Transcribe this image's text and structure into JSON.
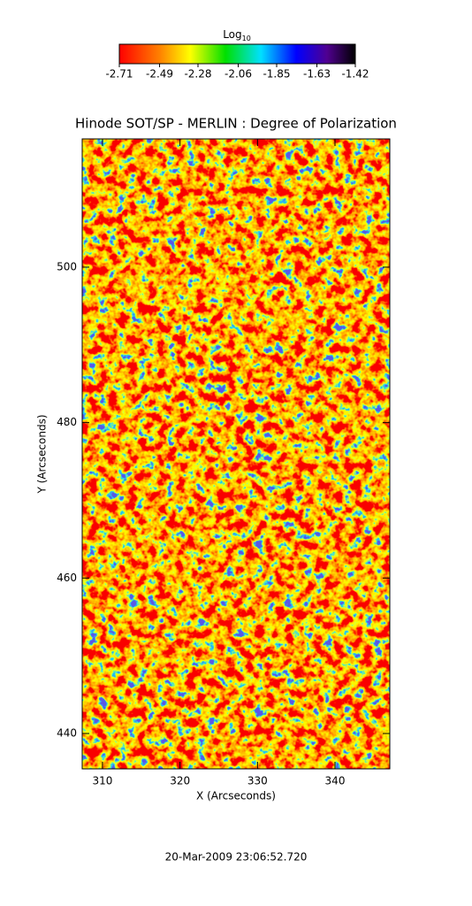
{
  "chart_data": {
    "type": "image",
    "title": "Hinode SOT/SP - MERLIN : Degree of Polarization",
    "x_label": "X (Arcseconds)",
    "y_label": "Y (Arcseconds)",
    "xlim": [
      307.38,
      347.07
    ],
    "xticks": [
      310,
      320,
      330,
      340
    ],
    "ylim": [
      435.45,
      516.5
    ],
    "yticks": [
      440,
      460,
      480,
      500
    ],
    "colorbar": {
      "label": "Log",
      "label_subscript": "10",
      "lim": [
        -2.71,
        -1.42
      ],
      "ticks": [
        -2.71,
        -2.49,
        -2.28,
        -2.06,
        -1.85,
        -1.63,
        -1.42
      ]
    },
    "annotation": "20-Mar-2009 23:06:52.720"
  }
}
